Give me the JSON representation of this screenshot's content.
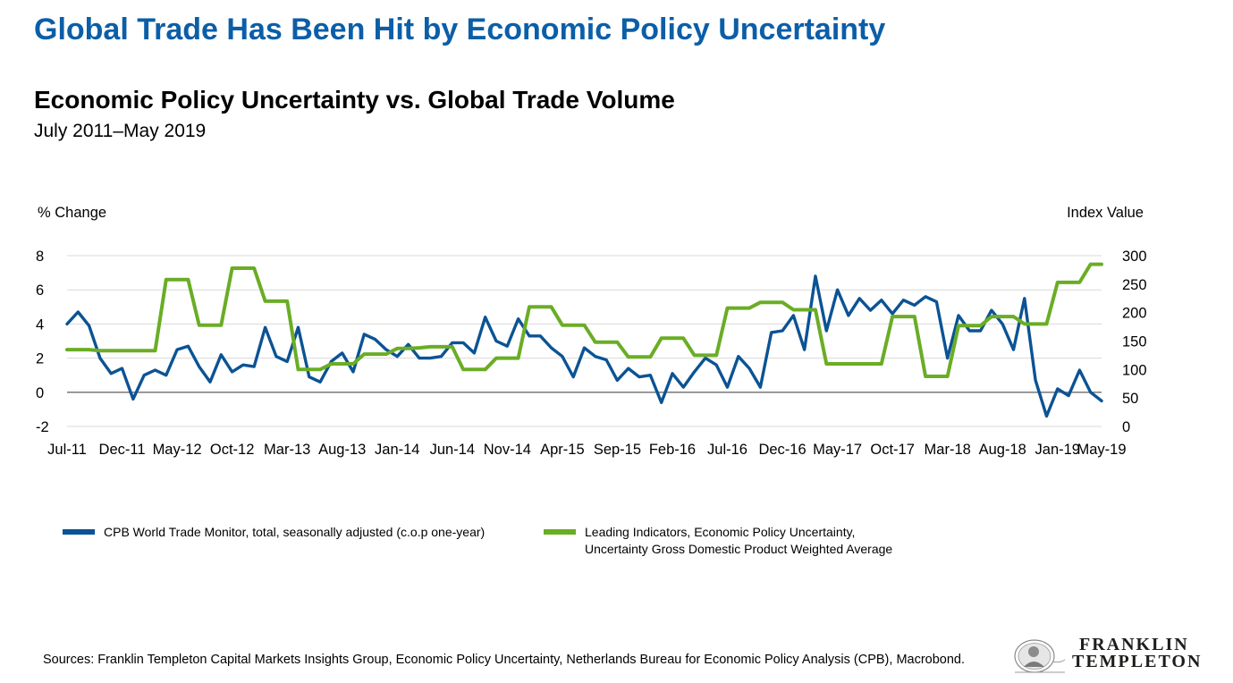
{
  "header": {
    "title": "Global Trade Has Been Hit by Economic Policy Uncertainty"
  },
  "chart_data": {
    "type": "line",
    "title": "Economic Policy Uncertainty vs. Global Trade Volume",
    "subtitle": "July 2011–May 2019",
    "y_left_label": "% Change",
    "y_right_label": "Index Value",
    "y_left_range": [
      -2,
      8
    ],
    "y_left_ticks": [
      -2,
      0,
      2,
      4,
      6,
      8
    ],
    "y_right_range": [
      0,
      300
    ],
    "y_right_ticks": [
      0,
      50,
      100,
      150,
      200,
      250,
      300
    ],
    "x_tick_labels": [
      "Jul-11",
      "Dec-11",
      "May-12",
      "Oct-12",
      "Mar-13",
      "Aug-13",
      "Jan-14",
      "Jun-14",
      "Nov-14",
      "Apr-15",
      "Sep-15",
      "Feb-16",
      "Jul-16",
      "Dec-16",
      "May-17",
      "Oct-17",
      "Mar-18",
      "Aug-18",
      "Jan-19",
      "May-19"
    ],
    "x_start": "Jul-11",
    "x_end": "May-19",
    "grid": "horizontal",
    "legend_position": "bottom",
    "series": [
      {
        "name": "CPB World Trade Monitor, total, seasonally adjusted (c.o.p one-year)",
        "axis": "left",
        "color": "#0b5394",
        "values": [
          4.0,
          4.7,
          3.9,
          2.0,
          1.1,
          1.4,
          -0.4,
          1.0,
          1.3,
          1.0,
          2.5,
          2.7,
          1.5,
          0.6,
          2.2,
          1.2,
          1.6,
          1.5,
          3.8,
          2.1,
          1.8,
          3.8,
          0.9,
          0.6,
          1.8,
          2.3,
          1.2,
          3.4,
          3.1,
          2.5,
          2.1,
          2.8,
          2.0,
          2.0,
          2.1,
          2.9,
          2.9,
          2.3,
          4.4,
          3.0,
          2.7,
          4.3,
          3.3,
          3.3,
          2.6,
          2.1,
          0.9,
          2.6,
          2.1,
          1.9,
          0.7,
          1.4,
          0.9,
          1.0,
          -0.6,
          1.1,
          0.3,
          1.2,
          2.0,
          1.6,
          0.3,
          2.1,
          1.4,
          0.3,
          3.5,
          3.6,
          4.5,
          2.5,
          6.8,
          3.6,
          6.0,
          4.5,
          5.5,
          4.8,
          5.4,
          4.6,
          5.4,
          5.1,
          5.6,
          5.3,
          2.0,
          4.5,
          3.6,
          3.6,
          4.8,
          4.0,
          2.5,
          5.5,
          0.7,
          -1.4,
          0.2,
          -0.2,
          1.3,
          0.0,
          -0.5
        ]
      },
      {
        "name": "Leading Indicators, Economic Policy Uncertainty, Uncertainty Gross Domestic Product Weighted Average",
        "name_lines": [
          "Leading Indicators, Economic Policy Uncertainty,",
          "Uncertainty Gross Domestic Product Weighted Average"
        ],
        "axis": "right",
        "color": "#6aad25",
        "values": [
          135,
          135,
          135,
          133,
          133,
          133,
          133,
          133,
          133,
          258,
          258,
          258,
          178,
          178,
          178,
          278,
          278,
          278,
          220,
          220,
          220,
          100,
          100,
          100,
          110,
          110,
          110,
          127,
          127,
          127,
          137,
          137,
          138,
          140,
          140,
          140,
          100,
          100,
          100,
          120,
          120,
          120,
          210,
          210,
          210,
          178,
          178,
          178,
          148,
          148,
          148,
          122,
          122,
          122,
          155,
          155,
          155,
          125,
          125,
          125,
          208,
          208,
          208,
          218,
          218,
          218,
          205,
          205,
          205,
          110,
          110,
          110,
          110,
          110,
          110,
          193,
          193,
          193,
          88,
          88,
          88,
          177,
          177,
          177,
          193,
          193,
          193,
          180,
          180,
          180,
          253,
          253,
          253,
          285,
          285
        ]
      }
    ]
  },
  "sources": "Sources: Franklin Templeton Capital Markets Insights Group, Economic Policy Uncertainty, Netherlands Bureau for Economic Policy Analysis (CPB), Macrobond.",
  "logo": {
    "line1": "FRANKLIN",
    "line2": "TEMPLETON"
  }
}
